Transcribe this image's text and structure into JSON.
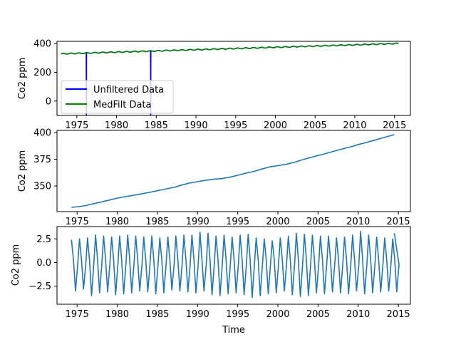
{
  "chart_data": [
    {
      "type": "line",
      "title": "",
      "xlabel": "",
      "ylabel": "Co2 ppm",
      "xlim": [
        1972.5,
        2017.0
      ],
      "ylim": [
        -100,
        415
      ],
      "xticks": [
        1975,
        1980,
        1985,
        1990,
        1995,
        2000,
        2005,
        2010,
        2015
      ],
      "yticks": [
        0,
        200,
        400
      ],
      "grid": false,
      "legend": "lower-left",
      "series": [
        {
          "name": "Unfiltered Data",
          "color": "#0000ff",
          "kind": "seasonal",
          "x_range": [
            1973.0,
            2015.5
          ],
          "trend_start": 328,
          "trend_end": 400,
          "seasonal_amplitude": 3.0,
          "dropouts": [
            {
              "x": 1976.2,
              "value": -100
            },
            {
              "x": 1984.3,
              "value": -100
            }
          ]
        },
        {
          "name": "MedFilt Data",
          "color": "#008000",
          "kind": "seasonal",
          "x_range": [
            1973.0,
            2015.5
          ],
          "trend_start": 328,
          "trend_end": 400,
          "seasonal_amplitude": 3.0,
          "dropouts": []
        }
      ]
    },
    {
      "type": "line",
      "title": "",
      "xlabel": "",
      "ylabel": "Co2 ppm",
      "xlim": [
        1972.5,
        2016.5
      ],
      "ylim": [
        326,
        402
      ],
      "xticks": [
        1975,
        1980,
        1985,
        1990,
        1995,
        2000,
        2005,
        2010,
        2015
      ],
      "yticks": [
        350,
        375,
        400
      ],
      "grid": false,
      "legend": "none",
      "series": [
        {
          "color": "#1f77b4",
          "kind": "points",
          "x": [
            1974.3,
            1975.0,
            1976.0,
            1977.0,
            1978.0,
            1979.0,
            1980.0,
            1981.0,
            1982.0,
            1983.0,
            1984.0,
            1985.0,
            1986.0,
            1987.0,
            1988.0,
            1989.0,
            1990.0,
            1991.0,
            1992.0,
            1993.0,
            1994.0,
            1995.0,
            1996.0,
            1997.0,
            1998.0,
            1999.0,
            2000.0,
            2001.0,
            2002.0,
            2003.0,
            2004.0,
            2005.0,
            2006.0,
            2007.0,
            2008.0,
            2009.0,
            2010.0,
            2011.0,
            2012.0,
            2013.0,
            2014.0,
            2014.5
          ],
          "y": [
            330.0,
            330.5,
            331.5,
            333.3,
            335.0,
            336.8,
            338.6,
            340.0,
            341.3,
            342.6,
            344.0,
            345.6,
            347.1,
            348.6,
            350.8,
            352.7,
            354.0,
            355.3,
            356.3,
            356.9,
            358.2,
            360.0,
            362.0,
            363.6,
            365.8,
            367.9,
            369.0,
            370.3,
            372.0,
            374.4,
            376.5,
            378.5,
            380.4,
            382.6,
            384.6,
            386.5,
            388.7,
            390.7,
            392.7,
            394.9,
            397.0,
            398.0
          ]
        }
      ]
    },
    {
      "type": "line",
      "title": "",
      "xlabel": "Time",
      "ylabel": "Co2 ppm",
      "xlim": [
        1972.5,
        2016.5
      ],
      "ylim": [
        -4.4,
        3.8
      ],
      "xticks": [
        1975,
        1980,
        1985,
        1990,
        1995,
        2000,
        2005,
        2010,
        2015
      ],
      "yticks": [
        -2.5,
        0.0,
        2.5
      ],
      "ytick_labels": [
        "−2.5",
        "0.0",
        "2.5"
      ],
      "grid": false,
      "legend": "none",
      "series": [
        {
          "color": "#1f77b4",
          "kind": "oscillation",
          "x_range": [
            1974.3,
            2014.5
          ],
          "period_years": 1.0,
          "peaks": [
            2.4,
            2.5,
            2.6,
            2.9,
            2.8,
            2.7,
            2.8,
            2.9,
            2.8,
            2.7,
            2.8,
            2.6,
            2.7,
            2.8,
            2.9,
            2.9,
            3.2,
            3.1,
            2.8,
            2.9,
            2.7,
            2.9,
            3.0,
            2.6,
            2.5,
            2.3,
            2.6,
            2.8,
            3.1,
            3.0,
            2.9,
            2.8,
            2.8,
            2.6,
            2.7,
            2.9,
            3.3,
            2.9,
            2.7,
            2.6,
            2.5
          ],
          "troughs": [
            -3.0,
            -2.8,
            -3.5,
            -3.2,
            -3.1,
            -3.4,
            -3.3,
            -3.2,
            -3.0,
            -3.1,
            -3.3,
            -3.2,
            -2.9,
            -3.0,
            -3.1,
            -3.2,
            -3.0,
            -3.4,
            -3.5,
            -3.3,
            -3.2,
            -3.4,
            -3.7,
            -3.5,
            -3.3,
            -3.2,
            -3.0,
            -3.4,
            -3.6,
            -3.5,
            -3.2,
            -3.3,
            -3.1,
            -3.2,
            -3.3,
            -3.0,
            -3.3,
            -3.2,
            -3.1,
            -3.0,
            -3.1
          ]
        }
      ]
    }
  ]
}
